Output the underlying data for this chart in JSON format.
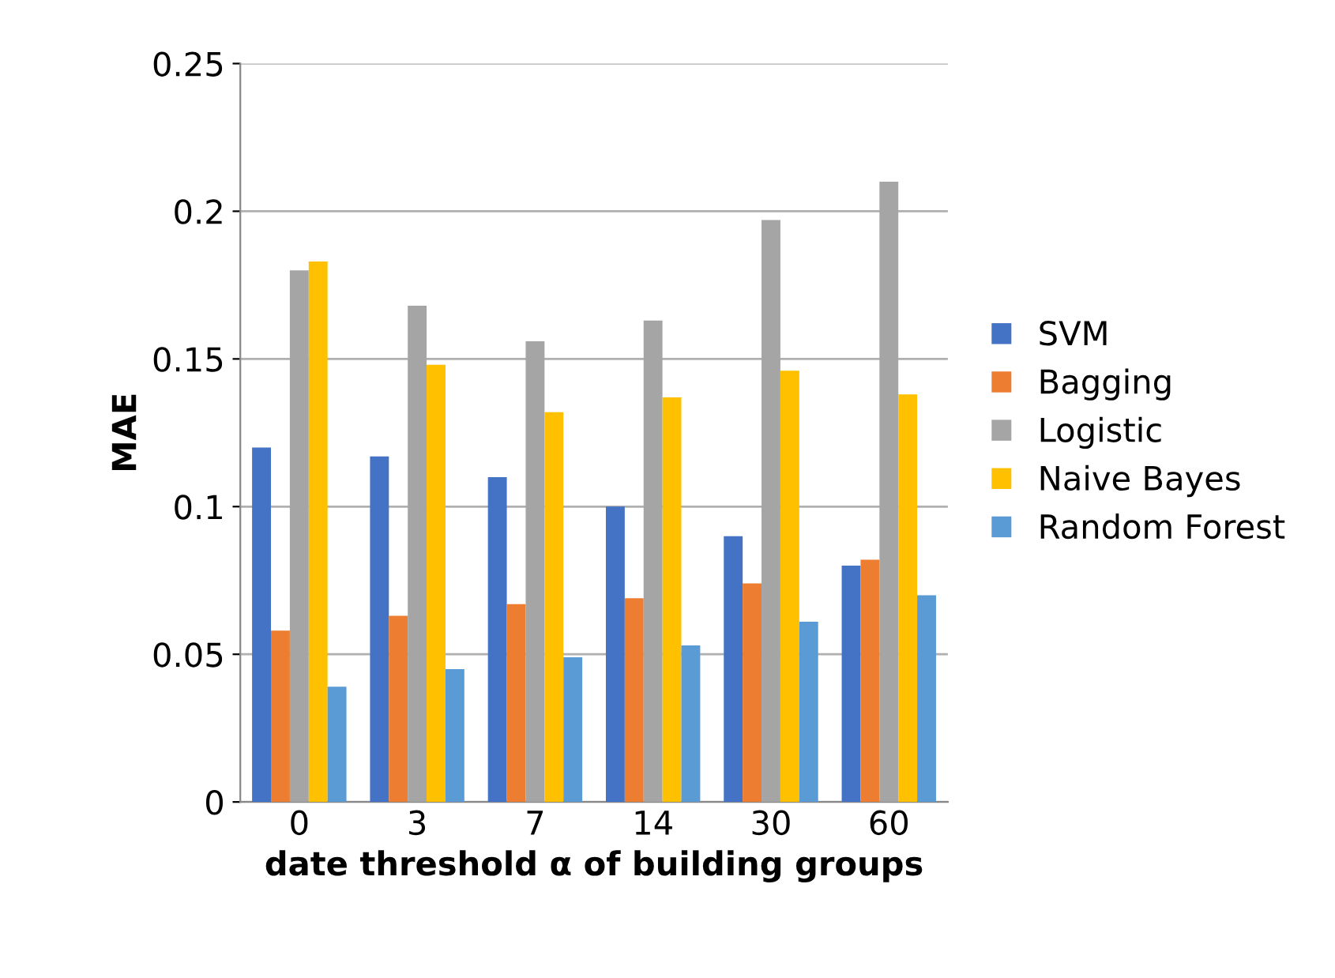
{
  "chart_data": {
    "type": "bar",
    "xlabel": "date threshold α of building groups",
    "ylabel": "MAE",
    "categories": [
      "0",
      "3",
      "7",
      "14",
      "30",
      "60"
    ],
    "series": [
      {
        "name": "SVM",
        "color": "#4472c4",
        "values": [
          0.12,
          0.117,
          0.11,
          0.1,
          0.09,
          0.08
        ]
      },
      {
        "name": "Bagging",
        "color": "#ed7d31",
        "values": [
          0.058,
          0.063,
          0.067,
          0.069,
          0.074,
          0.082
        ]
      },
      {
        "name": "Logistic",
        "color": "#a5a5a5",
        "values": [
          0.18,
          0.168,
          0.156,
          0.163,
          0.197,
          0.21
        ]
      },
      {
        "name": "Naive Bayes",
        "color": "#ffc000",
        "values": [
          0.183,
          0.148,
          0.132,
          0.137,
          0.146,
          0.138
        ]
      },
      {
        "name": "Random Forest",
        "color": "#5b9bd5",
        "values": [
          0.039,
          0.045,
          0.049,
          0.053,
          0.061,
          0.07
        ]
      }
    ],
    "ylim": [
      0,
      0.25
    ],
    "yticks": [
      0,
      0.05,
      0.1,
      0.15,
      0.2,
      0.25
    ],
    "grid": "y",
    "legend": "right"
  }
}
